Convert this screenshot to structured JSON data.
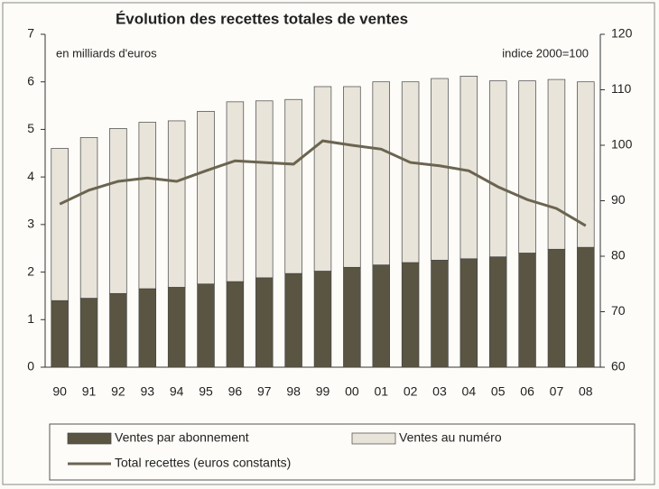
{
  "chart_data": {
    "type": "bar",
    "title": "Évolution des recettes totales de ventes",
    "annotations": [
      "en milliards d'euros",
      "indice 2000=100"
    ],
    "categories": [
      "90",
      "91",
      "92",
      "93",
      "94",
      "95",
      "96",
      "97",
      "98",
      "99",
      "00",
      "01",
      "02",
      "03",
      "04",
      "05",
      "06",
      "07",
      "08"
    ],
    "stacked": true,
    "legend": "bottom",
    "series": [
      {
        "name": "Ventes par abonnement",
        "type": "bar",
        "color": "#5a5542",
        "values": [
          1.4,
          1.45,
          1.55,
          1.65,
          1.68,
          1.75,
          1.8,
          1.88,
          1.97,
          2.02,
          2.1,
          2.15,
          2.2,
          2.25,
          2.28,
          2.32,
          2.4,
          2.48,
          2.52
        ]
      },
      {
        "name": "Ventes au numéro",
        "type": "bar",
        "color": "#e8e4da",
        "values": [
          3.2,
          3.38,
          3.47,
          3.5,
          3.5,
          3.63,
          3.78,
          3.72,
          3.66,
          3.88,
          3.8,
          3.85,
          3.8,
          3.82,
          3.84,
          3.7,
          3.62,
          3.57,
          3.48
        ]
      },
      {
        "name": "Total recettes (euros constants)",
        "type": "line",
        "axis": "y2",
        "color": "#6b6450",
        "values": [
          89.4,
          91.9,
          93.5,
          94.1,
          93.5,
          95.4,
          97.2,
          96.9,
          96.6,
          100.8,
          100,
          99.3,
          96.9,
          96.3,
          95.4,
          92.5,
          90.2,
          88.6,
          85.5
        ]
      }
    ],
    "ylim": [
      0,
      7
    ],
    "yticks": [
      0,
      1,
      2,
      3,
      4,
      5,
      6,
      7
    ],
    "y2lim": [
      60,
      120
    ],
    "y2ticks": [
      60,
      70,
      80,
      90,
      100,
      110,
      120
    ]
  }
}
